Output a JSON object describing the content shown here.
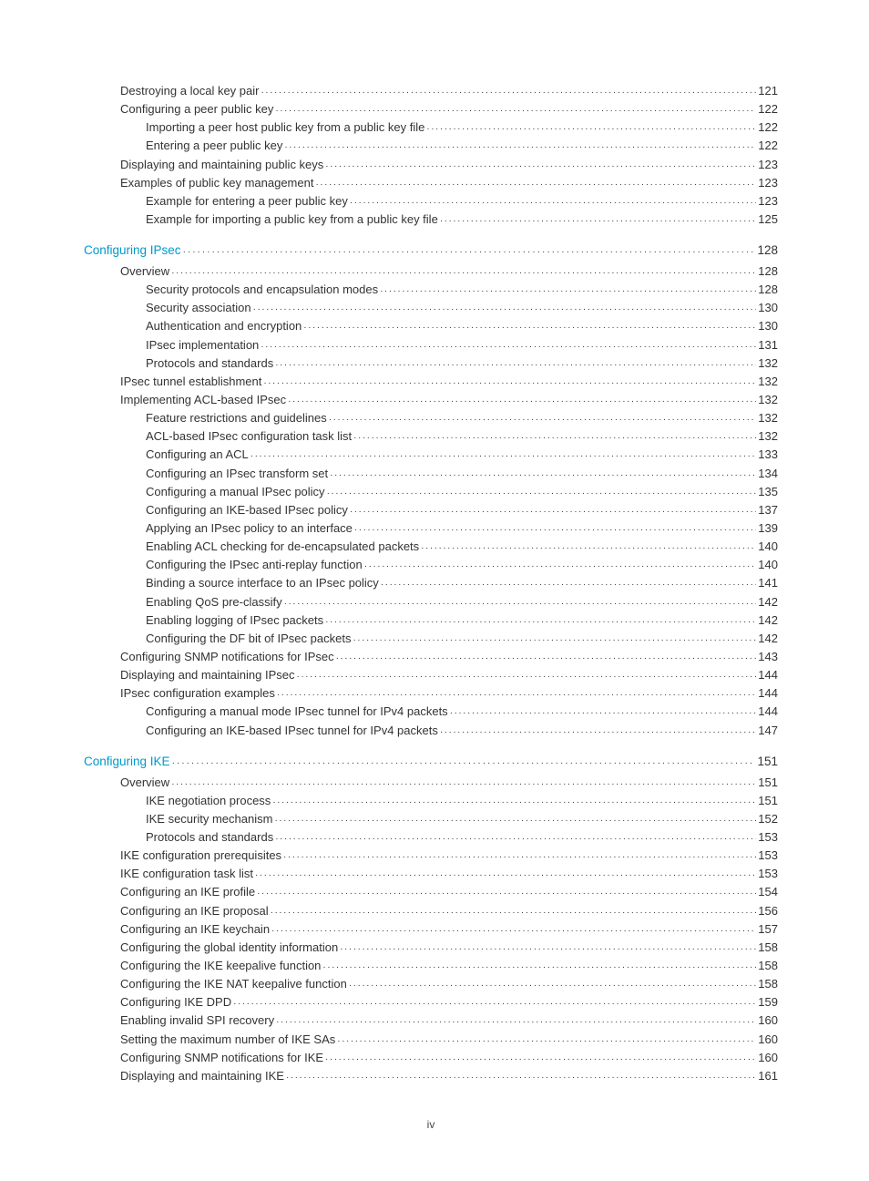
{
  "page_label": "iv",
  "colors": {
    "section_link": "#0099cc",
    "text": "#333333",
    "background": "#ffffff"
  },
  "typography": {
    "body_fontsize_pt": 10,
    "section_fontsize_pt": 10,
    "font_family": "Arial"
  },
  "toc": [
    {
      "level": 1,
      "title": "Destroying a local key pair",
      "page": "121"
    },
    {
      "level": 1,
      "title": "Configuring a peer public key",
      "page": "122"
    },
    {
      "level": 2,
      "title": "Importing a peer host public key from a public key file",
      "page": "122"
    },
    {
      "level": 2,
      "title": "Entering a peer public key",
      "page": "122"
    },
    {
      "level": 1,
      "title": "Displaying and maintaining public keys",
      "page": "123"
    },
    {
      "level": 1,
      "title": "Examples of public key management",
      "page": "123"
    },
    {
      "level": 2,
      "title": "Example for entering a peer public key",
      "page": "123"
    },
    {
      "level": 2,
      "title": "Example for importing a public key from a public key file",
      "page": "125"
    },
    {
      "level": 0,
      "title": "Configuring IPsec",
      "page": "128"
    },
    {
      "level": 1,
      "title": "Overview",
      "page": "128"
    },
    {
      "level": 2,
      "title": "Security protocols and encapsulation modes",
      "page": "128"
    },
    {
      "level": 2,
      "title": "Security association",
      "page": "130"
    },
    {
      "level": 2,
      "title": "Authentication and encryption",
      "page": "130"
    },
    {
      "level": 2,
      "title": "IPsec implementation",
      "page": "131"
    },
    {
      "level": 2,
      "title": "Protocols and standards",
      "page": "132"
    },
    {
      "level": 1,
      "title": "IPsec tunnel establishment",
      "page": "132"
    },
    {
      "level": 1,
      "title": "Implementing ACL-based IPsec",
      "page": "132"
    },
    {
      "level": 2,
      "title": "Feature restrictions and guidelines",
      "page": "132"
    },
    {
      "level": 2,
      "title": "ACL-based IPsec configuration task list",
      "page": "132"
    },
    {
      "level": 2,
      "title": "Configuring an ACL",
      "page": "133"
    },
    {
      "level": 2,
      "title": "Configuring an IPsec transform set",
      "page": "134"
    },
    {
      "level": 2,
      "title": "Configuring a manual IPsec policy",
      "page": "135"
    },
    {
      "level": 2,
      "title": "Configuring an IKE-based IPsec policy",
      "page": "137"
    },
    {
      "level": 2,
      "title": "Applying an IPsec policy to an interface",
      "page": "139"
    },
    {
      "level": 2,
      "title": "Enabling ACL checking for de-encapsulated packets",
      "page": "140"
    },
    {
      "level": 2,
      "title": "Configuring the IPsec anti-replay function",
      "page": "140"
    },
    {
      "level": 2,
      "title": "Binding a source interface to an IPsec policy",
      "page": "141"
    },
    {
      "level": 2,
      "title": "Enabling QoS pre-classify",
      "page": "142"
    },
    {
      "level": 2,
      "title": "Enabling logging of IPsec packets",
      "page": "142"
    },
    {
      "level": 2,
      "title": "Configuring the DF bit of IPsec packets",
      "page": "142"
    },
    {
      "level": 1,
      "title": "Configuring SNMP notifications for IPsec",
      "page": "143"
    },
    {
      "level": 1,
      "title": "Displaying and maintaining IPsec",
      "page": "144"
    },
    {
      "level": 1,
      "title": "IPsec configuration examples",
      "page": "144"
    },
    {
      "level": 2,
      "title": "Configuring a manual mode IPsec tunnel for IPv4 packets",
      "page": "144"
    },
    {
      "level": 2,
      "title": "Configuring an IKE-based IPsec tunnel for IPv4 packets",
      "page": "147"
    },
    {
      "level": 0,
      "title": "Configuring IKE",
      "page": "151"
    },
    {
      "level": 1,
      "title": "Overview",
      "page": "151"
    },
    {
      "level": 2,
      "title": "IKE negotiation process",
      "page": "151"
    },
    {
      "level": 2,
      "title": "IKE security mechanism",
      "page": "152"
    },
    {
      "level": 2,
      "title": "Protocols and standards",
      "page": "153"
    },
    {
      "level": 1,
      "title": "IKE configuration prerequisites",
      "page": "153"
    },
    {
      "level": 1,
      "title": "IKE configuration task list",
      "page": "153"
    },
    {
      "level": 1,
      "title": "Configuring an IKE profile",
      "page": "154"
    },
    {
      "level": 1,
      "title": "Configuring an IKE proposal",
      "page": "156"
    },
    {
      "level": 1,
      "title": "Configuring an IKE keychain",
      "page": "157"
    },
    {
      "level": 1,
      "title": "Configuring the global identity information",
      "page": "158"
    },
    {
      "level": 1,
      "title": "Configuring the IKE keepalive function",
      "page": "158"
    },
    {
      "level": 1,
      "title": "Configuring the IKE NAT keepalive function",
      "page": "158"
    },
    {
      "level": 1,
      "title": "Configuring IKE DPD",
      "page": "159"
    },
    {
      "level": 1,
      "title": "Enabling invalid SPI recovery",
      "page": "160"
    },
    {
      "level": 1,
      "title": "Setting the maximum number of IKE SAs",
      "page": "160"
    },
    {
      "level": 1,
      "title": "Configuring SNMP notifications for IKE",
      "page": "160"
    },
    {
      "level": 1,
      "title": "Displaying and maintaining IKE",
      "page": "161"
    }
  ]
}
